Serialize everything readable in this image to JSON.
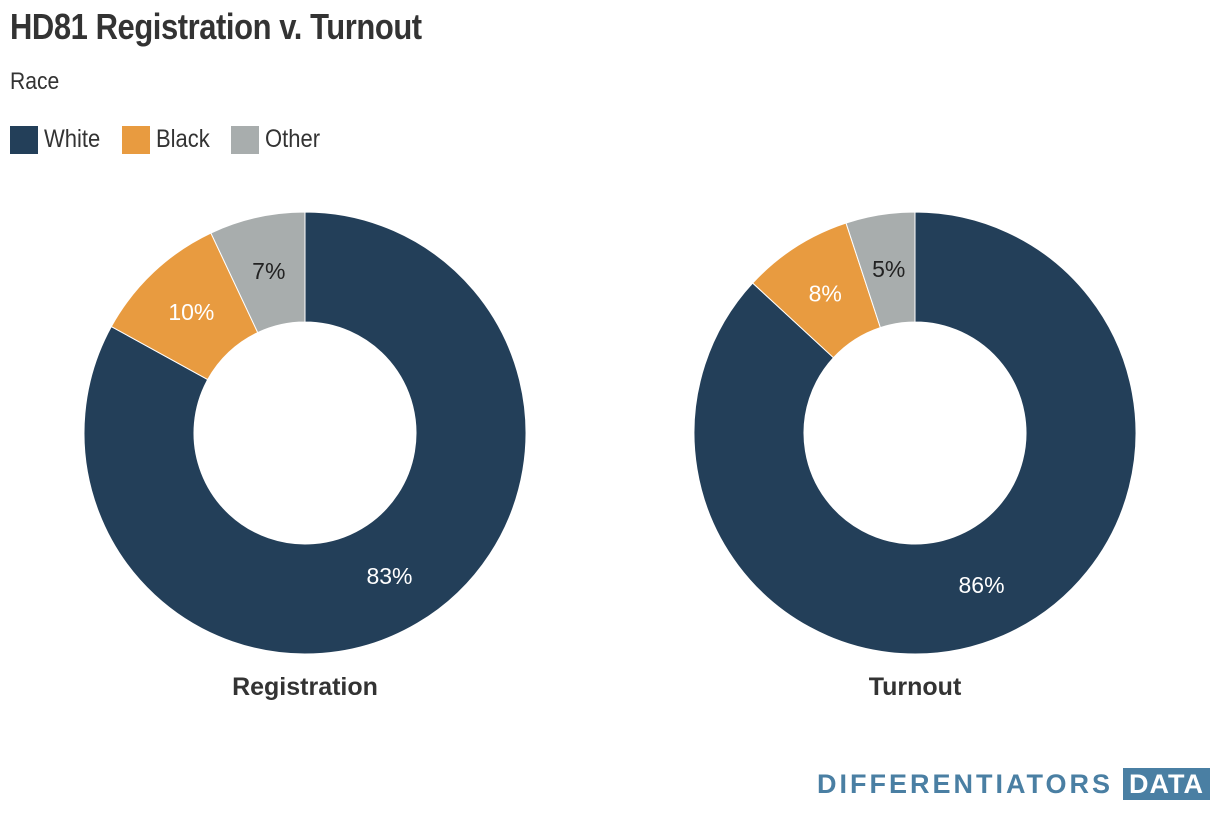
{
  "header": {
    "title": "HD81 Registration v. Turnout",
    "subtitle": "Race"
  },
  "legend": {
    "items": [
      {
        "label": "White",
        "color": "#233f59"
      },
      {
        "label": "Black",
        "color": "#e89b40"
      },
      {
        "label": "Other",
        "color": "#a8adad"
      }
    ]
  },
  "chart_data": [
    {
      "type": "pie",
      "variant": "donut",
      "title": "Registration",
      "categories": [
        "White",
        "Black",
        "Other"
      ],
      "values": [
        83,
        10,
        7
      ],
      "labels": [
        "83%",
        "10%",
        "7%"
      ],
      "colors": [
        "#233f59",
        "#e89b40",
        "#a8adad"
      ],
      "label_colors": [
        "#ffffff",
        "#ffffff",
        "#222222"
      ]
    },
    {
      "type": "pie",
      "variant": "donut",
      "title": "Turnout",
      "categories": [
        "White",
        "Black",
        "Other"
      ],
      "values": [
        86,
        8,
        5
      ],
      "labels": [
        "86%",
        "8%",
        "5%"
      ],
      "colors": [
        "#233f59",
        "#e89b40",
        "#a8adad"
      ],
      "label_colors": [
        "#ffffff",
        "#ffffff",
        "#222222"
      ]
    }
  ],
  "watermark": {
    "text": "DIFFERENTIATORS",
    "box_text": "DATA"
  }
}
